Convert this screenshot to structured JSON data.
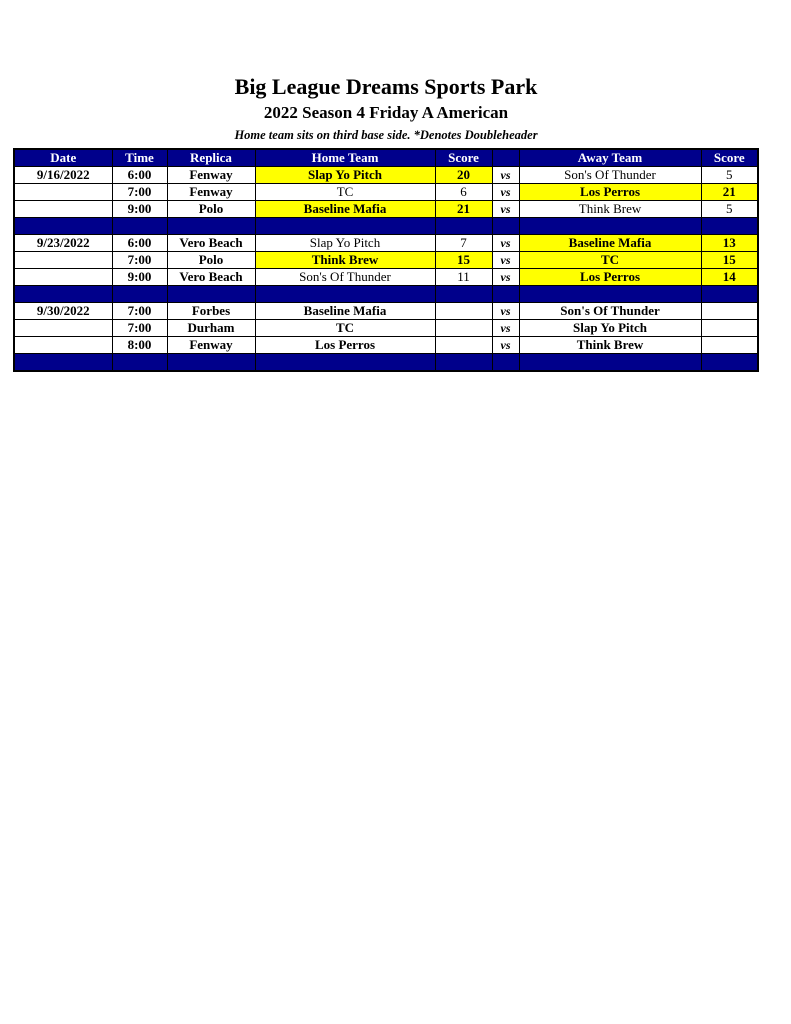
{
  "title": "Big League Dreams Sports Park",
  "subtitle": "2022 Season 4 Friday A American",
  "note": "Home team sits on third base side.  *Denotes Doubleheader",
  "colors": {
    "header": "#00008b",
    "winner_highlight": "#ffff00"
  },
  "columns": [
    "Date",
    "Time",
    "Replica",
    "Home Team",
    "Score",
    "",
    "Away Team",
    "Score"
  ],
  "rows": [
    {
      "date": "9/16/2022",
      "time": "6:00",
      "replica": "Fenway",
      "home": "Slap Yo Pitch",
      "home_score": "20",
      "vs": "vs",
      "away": "Son's Of Thunder",
      "away_score": "5",
      "winner": "home",
      "bold_home": true,
      "bold_away": false
    },
    {
      "date": "",
      "time": "7:00",
      "replica": "Fenway",
      "home": "TC",
      "home_score": "6",
      "vs": "vs",
      "away": "Los Perros",
      "away_score": "21",
      "winner": "away",
      "bold_home": false,
      "bold_away": true
    },
    {
      "date": "",
      "time": "9:00",
      "replica": "Polo",
      "home": "Baseline Mafia",
      "home_score": "21",
      "vs": "vs",
      "away": "Think Brew",
      "away_score": "5",
      "winner": "home",
      "bold_home": true,
      "bold_away": false
    },
    {
      "separator": true
    },
    {
      "date": "9/23/2022",
      "time": "6:00",
      "replica": "Vero Beach",
      "home": "Slap Yo Pitch",
      "home_score": "7",
      "vs": "vs",
      "away": "Baseline Mafia",
      "away_score": "13",
      "winner": "away",
      "bold_home": false,
      "bold_away": true
    },
    {
      "date": "",
      "time": "7:00",
      "replica": "Polo",
      "home": "Think Brew",
      "home_score": "15",
      "vs": "vs",
      "away": "TC",
      "away_score": "15",
      "winner": "both",
      "bold_home": true,
      "bold_away": true
    },
    {
      "date": "",
      "time": "9:00",
      "replica": "Vero Beach",
      "home": "Son's Of Thunder",
      "home_score": "11",
      "vs": "vs",
      "away": "Los Perros",
      "away_score": "14",
      "winner": "away",
      "bold_home": false,
      "bold_away": true
    },
    {
      "separator": true
    },
    {
      "date": "9/30/2022",
      "time": "7:00",
      "replica": "Forbes",
      "home": "Baseline Mafia",
      "home_score": "",
      "vs": "vs",
      "away": "Son's Of Thunder",
      "away_score": "",
      "winner": "none",
      "bold_home": true,
      "bold_away": true
    },
    {
      "date": "",
      "time": "7:00",
      "replica": "Durham",
      "home": "TC",
      "home_score": "",
      "vs": "vs",
      "away": "Slap Yo Pitch",
      "away_score": "",
      "winner": "none",
      "bold_home": true,
      "bold_away": true
    },
    {
      "date": "",
      "time": "8:00",
      "replica": "Fenway",
      "home": "Los Perros",
      "home_score": "",
      "vs": "vs",
      "away": "Think Brew",
      "away_score": "",
      "winner": "none",
      "bold_home": true,
      "bold_away": true
    },
    {
      "separator": true
    }
  ]
}
